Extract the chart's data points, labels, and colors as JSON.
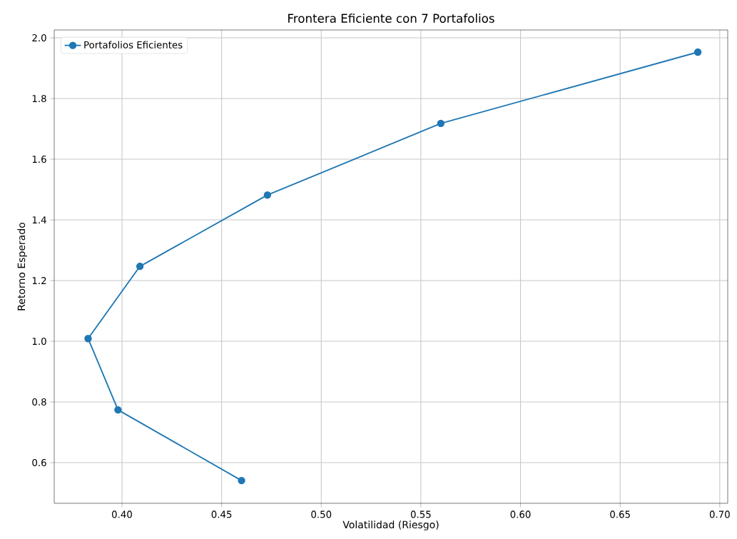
{
  "chart_data": {
    "type": "line",
    "title": "Frontera Eficiente con 7 Portafolios",
    "xlabel": "Volatilidad (Riesgo)",
    "ylabel": "Retorno Esperado",
    "x": [
      0.689,
      0.56,
      0.473,
      0.409,
      0.383,
      0.398,
      0.46
    ],
    "series": [
      {
        "name": "Portafolios Eficientes",
        "color": "#1f77b4",
        "values": [
          1.953,
          1.718,
          1.482,
          1.247,
          1.009,
          0.774,
          0.541
        ]
      }
    ],
    "xlim": [
      0.366,
      0.704
    ],
    "ylim": [
      0.466,
      2.026
    ],
    "xticks": [
      {
        "value": 0.4,
        "label": "0.40"
      },
      {
        "value": 0.45,
        "label": "0.45"
      },
      {
        "value": 0.5,
        "label": "0.50"
      },
      {
        "value": 0.55,
        "label": "0.55"
      },
      {
        "value": 0.6,
        "label": "0.60"
      },
      {
        "value": 0.65,
        "label": "0.65"
      },
      {
        "value": 0.7,
        "label": "0.70"
      }
    ],
    "yticks": [
      0.6,
      0.8,
      {
        "value": 1.0,
        "label": "1.0"
      },
      1.2,
      1.4,
      1.6,
      1.8,
      {
        "value": 2.0,
        "label": "2.0"
      }
    ],
    "grid": true,
    "legend": "top left",
    "marker": "circle",
    "line_style": "solid"
  }
}
